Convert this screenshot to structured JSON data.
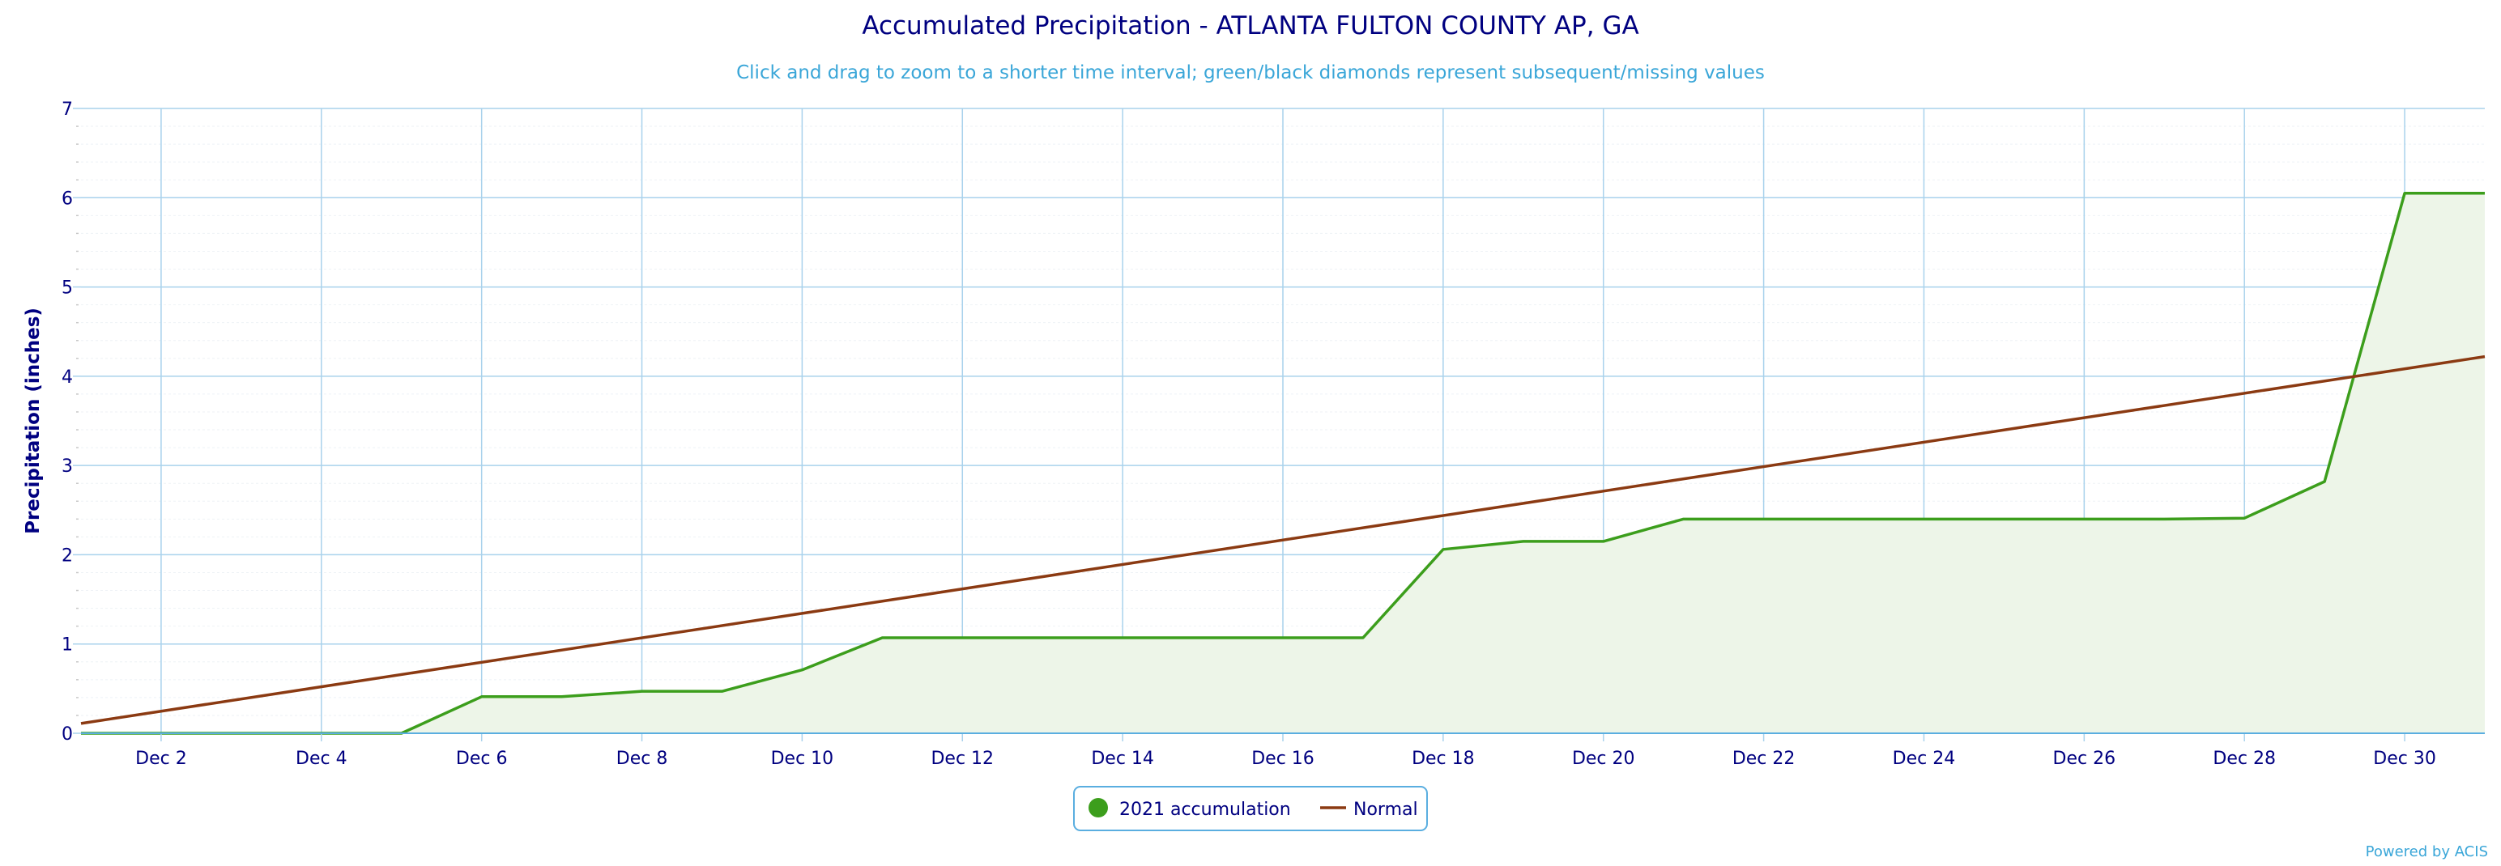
{
  "chart_data": {
    "type": "area",
    "title": "Accumulated Precipitation - ATLANTA FULTON COUNTY AP, GA",
    "subtitle": "Click and drag to zoom to a shorter time interval; green/black diamonds represent subsequent/missing values",
    "ylabel": "Precipitation (inches)",
    "xlabel": "",
    "xlim": [
      "Dec 1",
      "Dec 31"
    ],
    "ylim": [
      0,
      7
    ],
    "x_ticks": [
      "Dec 2",
      "Dec 4",
      "Dec 6",
      "Dec 8",
      "Dec 10",
      "Dec 12",
      "Dec 14",
      "Dec 16",
      "Dec 18",
      "Dec 20",
      "Dec 22",
      "Dec 24",
      "Dec 26",
      "Dec 28",
      "Dec 30"
    ],
    "y_ticks": [
      "0",
      "1",
      "2",
      "3",
      "4",
      "5",
      "6",
      "7"
    ],
    "grid": true,
    "legend_placement": "bottom-center",
    "series": [
      {
        "name": "2021 accumulation",
        "color": "#3c9e1c",
        "fill": "#edf5e8",
        "x": [
          "Dec 1",
          "Dec 2",
          "Dec 3",
          "Dec 4",
          "Dec 5",
          "Dec 6",
          "Dec 7",
          "Dec 8",
          "Dec 9",
          "Dec 10",
          "Dec 11",
          "Dec 12",
          "Dec 13",
          "Dec 14",
          "Dec 15",
          "Dec 16",
          "Dec 17",
          "Dec 18",
          "Dec 19",
          "Dec 20",
          "Dec 21",
          "Dec 22",
          "Dec 23",
          "Dec 24",
          "Dec 25",
          "Dec 26",
          "Dec 27",
          "Dec 28",
          "Dec 29",
          "Dec 30",
          "Dec 31"
        ],
        "values": [
          0,
          0,
          0,
          0,
          0,
          0.41,
          0.41,
          0.47,
          0.47,
          0.71,
          1.07,
          1.07,
          1.07,
          1.07,
          1.07,
          1.07,
          1.07,
          2.06,
          2.15,
          2.15,
          2.4,
          2.4,
          2.4,
          2.4,
          2.4,
          2.4,
          2.4,
          2.41,
          2.82,
          6.05,
          6.05
        ]
      },
      {
        "name": "Normal",
        "color": "#8b3a12",
        "x": [
          "Dec 1",
          "Dec 31"
        ],
        "values": [
          0.11,
          4.22
        ]
      }
    ]
  },
  "footer": {
    "credit": "Powered by ACIS"
  }
}
